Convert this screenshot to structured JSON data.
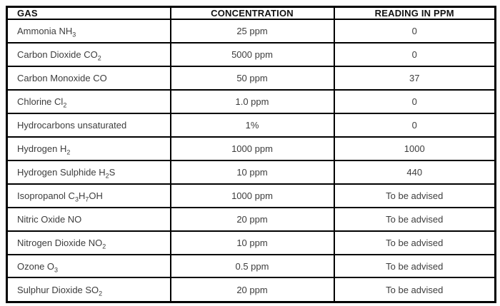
{
  "table": {
    "columns": [
      "GAS",
      "CONCENTRATION",
      "READING IN PPM"
    ],
    "rows": [
      {
        "gas": [
          {
            "text": "Ammonia NH"
          },
          {
            "text": "3",
            "sub": true
          }
        ],
        "concentration": "25 ppm",
        "reading": "0"
      },
      {
        "gas": [
          {
            "text": "Carbon Dioxide CO"
          },
          {
            "text": "2",
            "sub": true
          }
        ],
        "concentration": "5000 ppm",
        "reading": "0"
      },
      {
        "gas": [
          {
            "text": "Carbon Monoxide CO"
          }
        ],
        "concentration": "50 ppm",
        "reading": "37"
      },
      {
        "gas": [
          {
            "text": "Chlorine Cl"
          },
          {
            "text": "2",
            "sub": true
          }
        ],
        "concentration": "1.0 ppm",
        "reading": "0"
      },
      {
        "gas": [
          {
            "text": "Hydrocarbons unsaturated"
          }
        ],
        "concentration": "1%",
        "reading": "0"
      },
      {
        "gas": [
          {
            "text": "Hydrogen H"
          },
          {
            "text": "2",
            "sub": true
          }
        ],
        "concentration": "1000 ppm",
        "reading": "1000"
      },
      {
        "gas": [
          {
            "text": "Hydrogen Sulphide H"
          },
          {
            "text": "2",
            "sub": true
          },
          {
            "text": "S"
          }
        ],
        "concentration": "10 ppm",
        "reading": "440"
      },
      {
        "gas": [
          {
            "text": "Isopropanol C"
          },
          {
            "text": "3",
            "sub": true
          },
          {
            "text": "H"
          },
          {
            "text": "7",
            "sub": true
          },
          {
            "text": "OH"
          }
        ],
        "concentration": "1000 ppm",
        "reading": "To be advised"
      },
      {
        "gas": [
          {
            "text": "Nitric Oxide NO"
          }
        ],
        "concentration": "20 ppm",
        "reading": "To be advised"
      },
      {
        "gas": [
          {
            "text": "Nitrogen Dioxide NO"
          },
          {
            "text": "2",
            "sub": true
          }
        ],
        "concentration": "10 ppm",
        "reading": "To be advised"
      },
      {
        "gas": [
          {
            "text": "Ozone O"
          },
          {
            "text": "3",
            "sub": true
          }
        ],
        "concentration": "0.5 ppm",
        "reading": "To be advised"
      },
      {
        "gas": [
          {
            "text": "Sulphur Dioxide SO"
          },
          {
            "text": "2",
            "sub": true
          }
        ],
        "concentration": "20 ppm",
        "reading": "To be advised"
      }
    ]
  },
  "colors": {
    "border": "#000000",
    "header_text": "#111111",
    "body_text": "#3d3d3d",
    "background": "#fdfdfd"
  }
}
